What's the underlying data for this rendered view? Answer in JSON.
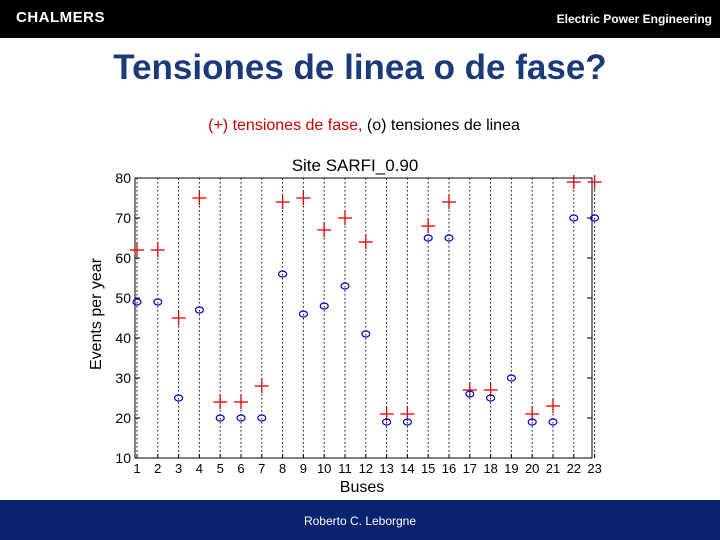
{
  "header": {
    "logo_text": "CHALMERS",
    "department": "Electric Power Engineering"
  },
  "slide": {
    "title": "Tensiones de linea o de fase?",
    "subtitle_part1": "(+) tensiones de fase,",
    "subtitle_part2": " (o) tensiones de linea"
  },
  "footer": {
    "author": "Roberto C. Leborgne"
  },
  "colors": {
    "plus_marker": "#dd0000",
    "circle_marker": "#0000cc",
    "title": "#1a3a7a",
    "footer_bg": "#0a2370"
  },
  "chart_data": {
    "type": "scatter",
    "title": "Site SARFI_0.90",
    "xlabel": "Buses",
    "ylabel": "Events per year",
    "xlim": [
      1,
      23
    ],
    "ylim": [
      10,
      80
    ],
    "xticks": [
      "1",
      "2",
      "3",
      "4",
      "5",
      "6",
      "7",
      "8",
      "9",
      "10",
      "11",
      "12",
      "13",
      "14",
      "15",
      "16",
      "17",
      "18",
      "19",
      "20",
      "21",
      "22",
      "23"
    ],
    "yticks": [
      10,
      20,
      30,
      40,
      50,
      60,
      70,
      80
    ],
    "grid": "vertical dotted",
    "series": [
      {
        "marker": "plus",
        "x": [
          1,
          2,
          3,
          4,
          5,
          6,
          7,
          8,
          9,
          10,
          11,
          12,
          13,
          14,
          15,
          16,
          17,
          18,
          20,
          21,
          22,
          23
        ],
        "y": [
          62,
          62,
          45,
          75,
          24,
          24,
          28,
          74,
          75,
          67,
          70,
          64,
          21,
          21,
          68,
          74,
          27,
          27,
          21,
          23,
          79,
          79
        ]
      },
      {
        "marker": "circle",
        "x": [
          1,
          2,
          3,
          4,
          5,
          6,
          7,
          8,
          9,
          10,
          11,
          12,
          13,
          14,
          15,
          16,
          17,
          18,
          19,
          20,
          21,
          22,
          23
        ],
        "y": [
          49,
          49,
          25,
          47,
          20,
          20,
          20,
          56,
          46,
          48,
          53,
          41,
          19,
          19,
          65,
          65,
          26,
          25,
          30,
          19,
          19,
          70,
          70
        ]
      }
    ]
  }
}
